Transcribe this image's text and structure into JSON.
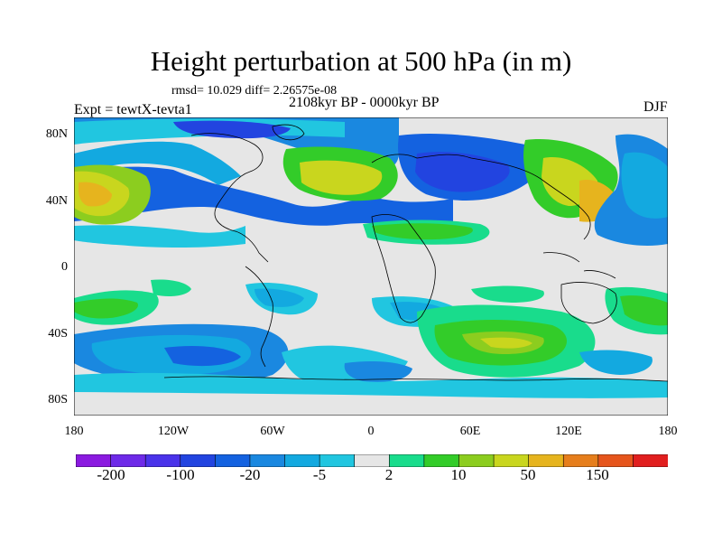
{
  "title": "Height perturbation at 500 hPa (in m)",
  "stats": "rmsd= 10.029  diff= 2.26575e-08",
  "subtitle": "2108kyr BP - 0000kyr BP",
  "experiment": "Expt = tewtX-tevta1",
  "season": "DJF",
  "lat_labels": [
    "80N",
    "40N",
    "0",
    "40S",
    "80S"
  ],
  "lon_labels": [
    "180",
    "120W",
    "60W",
    "0",
    "60E",
    "120E",
    "180"
  ],
  "colorbar": {
    "labels": [
      "-200",
      "-100",
      "-20",
      "-5",
      "2",
      "10",
      "50",
      "150"
    ],
    "colors": [
      "#8b1ae0",
      "#6e2ae8",
      "#4a33ea",
      "#2244e0",
      "#1462e0",
      "#1a88e0",
      "#13a9e0",
      "#21c6e0",
      "#e6e6e6",
      "#19dc8c",
      "#33cc29",
      "#8ccd1f",
      "#c9d61e",
      "#e6b41e",
      "#e67e1c",
      "#e6551c",
      "#e11f1f"
    ]
  },
  "fields": {
    "neutral": "#e6e6e6",
    "light_blue": "#13a9e0",
    "mid_blue": "#1a88e0",
    "dark_blue": "#1462e0",
    "teal": "#21c6e0",
    "green_light": "#19dc8c",
    "green": "#33cc29",
    "yellow_green": "#8ccd1f",
    "yellow": "#c9d61e",
    "orange": "#e6b41e"
  }
}
